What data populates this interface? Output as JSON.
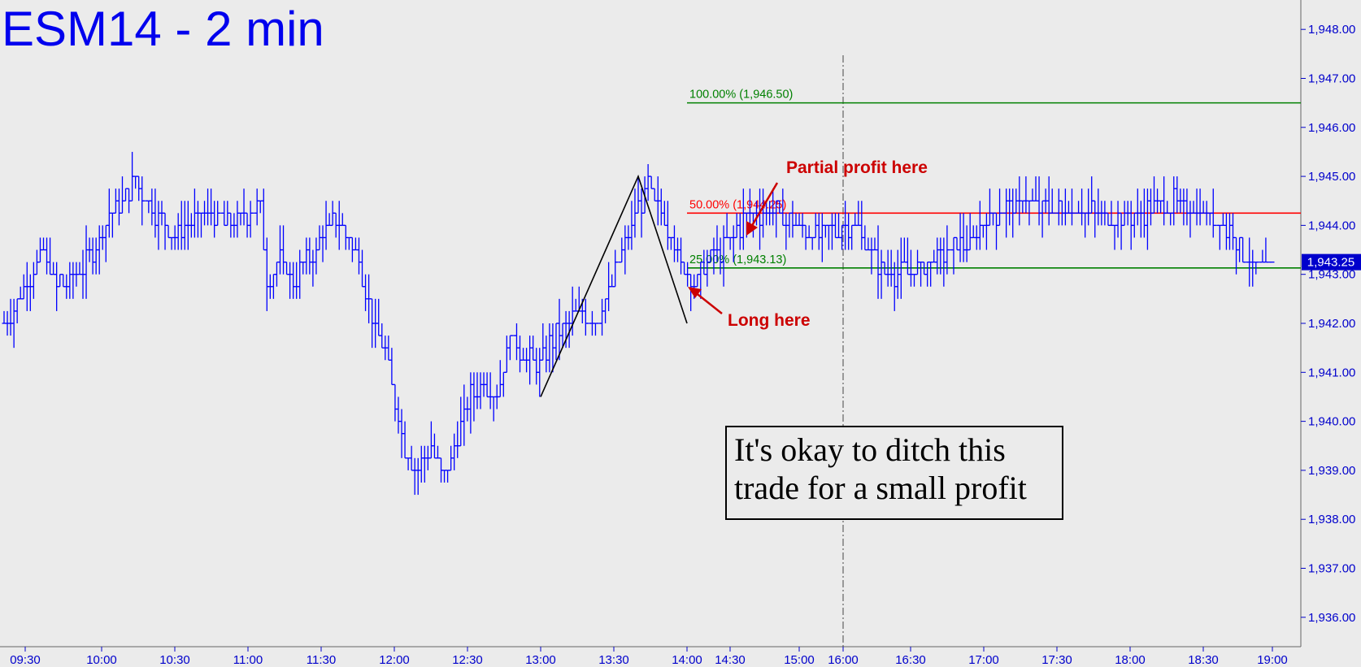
{
  "chart_data": {
    "type": "ohlc",
    "title": "ESM14 - 2 min",
    "xlabel": "",
    "ylabel": "",
    "ylim": [
      1935.4,
      1948.6
    ],
    "y_ticks": [
      "1,936.00",
      "1,937.00",
      "1,938.00",
      "1,939.00",
      "1,940.00",
      "1,941.00",
      "1,942.00",
      "1,943.00",
      "1,944.00",
      "1,945.00",
      "1,946.00",
      "1,947.00",
      "1,948.00"
    ],
    "x_ticks": [
      "09:30",
      "10:00",
      "10:30",
      "11:00",
      "11:30",
      "12:00",
      "12:30",
      "13:00",
      "13:30",
      "14:00",
      "14:30",
      "15:00",
      "16:00",
      "16:30",
      "17:00",
      "17:30",
      "18:00",
      "18:30",
      "19:00"
    ],
    "last_price": "1,943.25",
    "price_path": [
      [
        0,
        1942.0
      ],
      [
        6,
        1942.7
      ],
      [
        12,
        1943.4
      ],
      [
        16,
        1942.8
      ],
      [
        22,
        1943.0
      ],
      [
        26,
        1943.3
      ],
      [
        32,
        1944.2
      ],
      [
        37,
        1944.6
      ],
      [
        40,
        1944.9
      ],
      [
        46,
        1944.2
      ],
      [
        52,
        1943.8
      ],
      [
        58,
        1944.1
      ],
      [
        63,
        1944.3
      ],
      [
        68,
        1944.0
      ],
      [
        73,
        1944.2
      ],
      [
        78,
        1944.4
      ],
      [
        80,
        1942.8
      ],
      [
        84,
        1943.3
      ],
      [
        88,
        1942.9
      ],
      [
        94,
        1943.4
      ],
      [
        98,
        1943.9
      ],
      [
        102,
        1944.1
      ],
      [
        108,
        1943.3
      ],
      [
        112,
        1942.1
      ],
      [
        116,
        1941.4
      ],
      [
        118,
        1940.6
      ],
      [
        122,
        1939.5
      ],
      [
        126,
        1939.0
      ],
      [
        130,
        1939.4
      ],
      [
        134,
        1938.9
      ],
      [
        138,
        1939.6
      ],
      [
        142,
        1940.6
      ],
      [
        146,
        1940.8
      ],
      [
        150,
        1940.5
      ],
      [
        154,
        1941.8
      ],
      [
        158,
        1941.4
      ],
      [
        162,
        1941.1
      ],
      [
        166,
        1941.6
      ],
      [
        170,
        1942.0
      ],
      [
        176,
        1942.3
      ],
      [
        180,
        1942.0
      ],
      [
        184,
        1942.6
      ],
      [
        188,
        1943.5
      ],
      [
        192,
        1944.2
      ],
      [
        196,
        1944.8
      ],
      [
        198,
        1944.5
      ],
      [
        202,
        1944.0
      ],
      [
        206,
        1943.2
      ],
      [
        210,
        1942.7
      ],
      [
        212,
        1943.2
      ],
      [
        220,
        1943.6
      ],
      [
        226,
        1944.2
      ],
      [
        234,
        1944.3
      ],
      [
        240,
        1944.0
      ],
      [
        248,
        1943.8
      ],
      [
        258,
        1944.0
      ],
      [
        262,
        1943.7
      ],
      [
        266,
        1943.1
      ],
      [
        272,
        1943.0
      ],
      [
        280,
        1943.2
      ],
      [
        286,
        1943.4
      ],
      [
        294,
        1943.7
      ],
      [
        298,
        1944.0
      ],
      [
        304,
        1944.3
      ],
      [
        310,
        1944.5
      ],
      [
        318,
        1944.3
      ],
      [
        330,
        1944.3
      ],
      [
        340,
        1944.2
      ],
      [
        350,
        1944.3
      ],
      [
        356,
        1944.5
      ],
      [
        364,
        1944.3
      ],
      [
        370,
        1944.1
      ],
      [
        374,
        1943.8
      ],
      [
        378,
        1943.3
      ],
      [
        382,
        1943.1
      ],
      [
        386,
        1943.2
      ]
    ],
    "zigzag": [
      {
        "x": "13:00",
        "y": 1940.5
      },
      {
        "x": "13:40",
        "y": 1945.0
      },
      {
        "x": "14:00",
        "y": 1942.0
      }
    ],
    "fib_levels": [
      {
        "label": "100.00% (1,946.50)",
        "value": 1946.5,
        "color": "#008000"
      },
      {
        "label": "50.00% (1,944.25)",
        "value": 1944.25,
        "color": "#ff0000"
      },
      {
        "label": "25.00% (1,943.13)",
        "value": 1943.13,
        "color": "#008000"
      }
    ],
    "session_marker": "16:00",
    "annotations": [
      {
        "text": "Partial profit here",
        "color": "#cc0000"
      },
      {
        "text": "Long here",
        "color": "#cc0000"
      }
    ],
    "note_lines": [
      "It's okay to ditch this",
      "trade for a small profit"
    ],
    "colors": {
      "bars": "#0000ff",
      "background": "#ebebeb",
      "text": "#0000cc",
      "zigzag": "#000000"
    }
  }
}
